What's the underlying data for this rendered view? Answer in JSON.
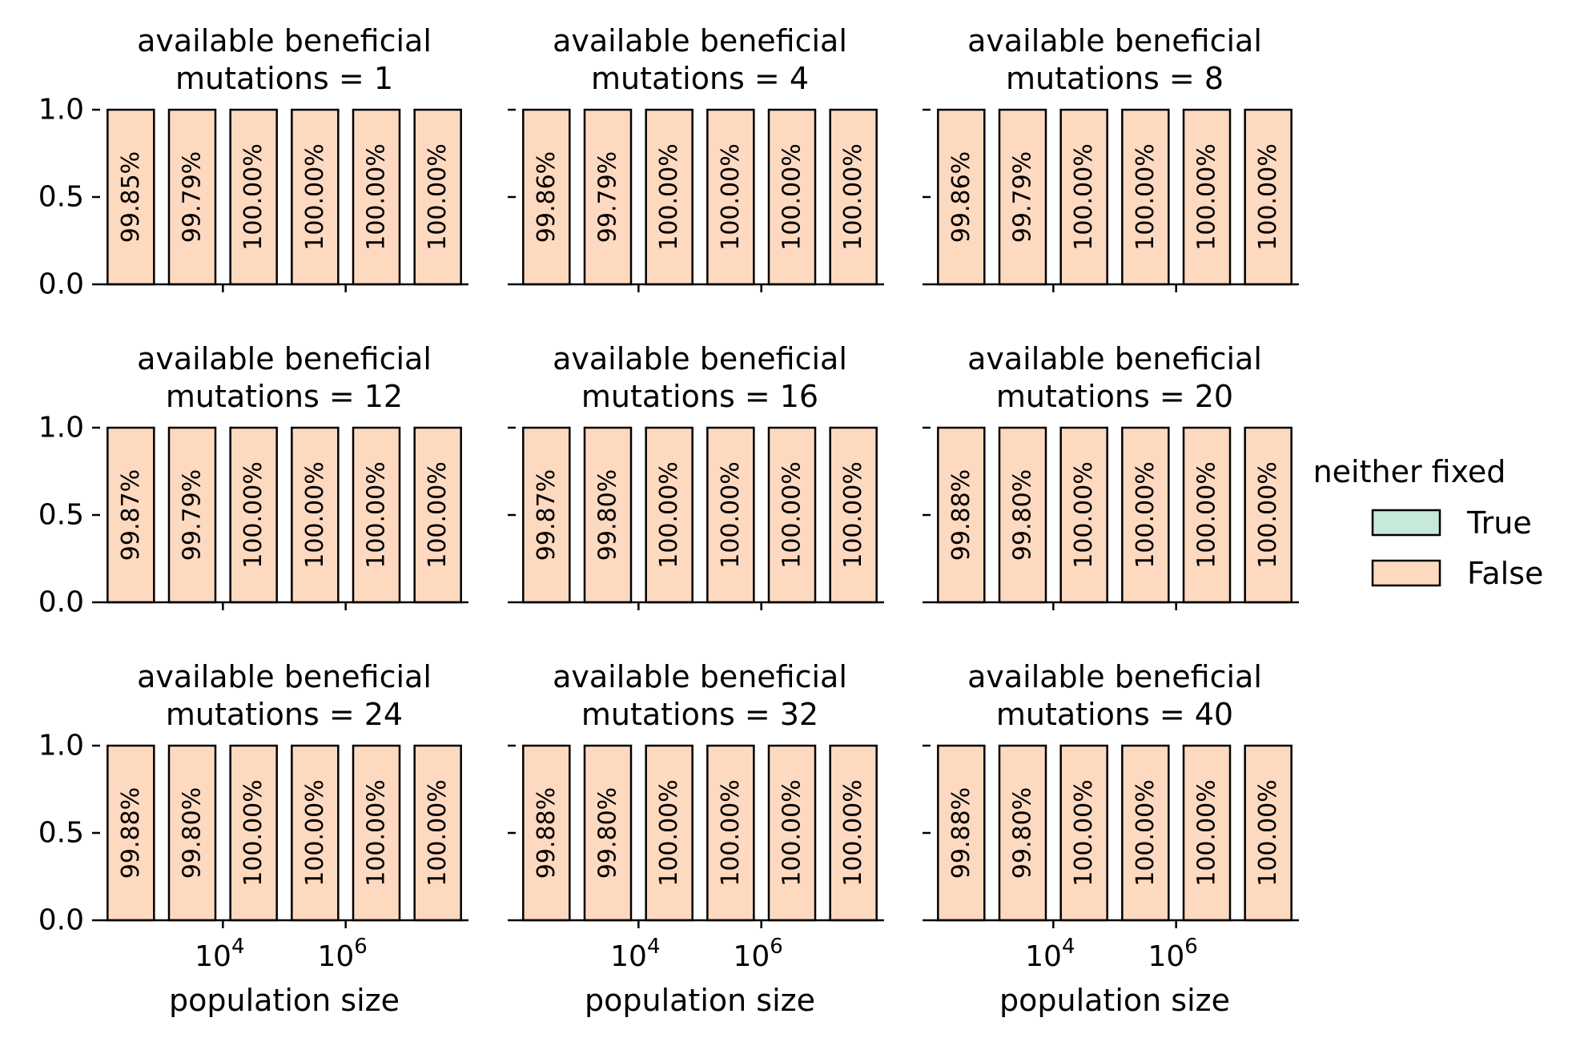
{
  "colors": {
    "true_fill": "#c6e9d9",
    "false_fill": "#fdd9c0",
    "edge": "#000000"
  },
  "legend": {
    "title": "neither fixed",
    "items": [
      {
        "label": "True",
        "color": "#c6e9d9"
      },
      {
        "label": "False",
        "color": "#fdd9c0"
      }
    ],
    "placement": "right"
  },
  "chart_data": [
    {
      "type": "bar",
      "title_line1": "available beneficial",
      "title_line2": "mutations = 1",
      "x": [
        316,
        3162,
        31623,
        316228,
        3162278,
        31622777
      ],
      "values": [
        1,
        1,
        1,
        1,
        1,
        1
      ],
      "labels": [
        "99.85%",
        "99.79%",
        "100.00%",
        "100.00%",
        "100.00%",
        "100.00%"
      ],
      "xlabel": "",
      "ylim": [
        0,
        1
      ],
      "yticks": [
        "0.0",
        "0.5",
        "1.0"
      ]
    },
    {
      "type": "bar",
      "title_line1": "available beneficial",
      "title_line2": "mutations = 4",
      "x": [
        316,
        3162,
        31623,
        316228,
        3162278,
        31622777
      ],
      "values": [
        1,
        1,
        1,
        1,
        1,
        1
      ],
      "labels": [
        "99.86%",
        "99.79%",
        "100.00%",
        "100.00%",
        "100.00%",
        "100.00%"
      ],
      "xlabel": "",
      "ylim": [
        0,
        1
      ]
    },
    {
      "type": "bar",
      "title_line1": "available beneficial",
      "title_line2": "mutations = 8",
      "x": [
        316,
        3162,
        31623,
        316228,
        3162278,
        31622777
      ],
      "values": [
        1,
        1,
        1,
        1,
        1,
        1
      ],
      "labels": [
        "99.86%",
        "99.79%",
        "100.00%",
        "100.00%",
        "100.00%",
        "100.00%"
      ],
      "xlabel": "",
      "ylim": [
        0,
        1
      ]
    },
    {
      "type": "bar",
      "title_line1": "available beneficial",
      "title_line2": "mutations = 12",
      "x": [
        316,
        3162,
        31623,
        316228,
        3162278,
        31622777
      ],
      "values": [
        1,
        1,
        1,
        1,
        1,
        1
      ],
      "labels": [
        "99.87%",
        "99.79%",
        "100.00%",
        "100.00%",
        "100.00%",
        "100.00%"
      ],
      "xlabel": "",
      "ylim": [
        0,
        1
      ],
      "yticks": [
        "0.0",
        "0.5",
        "1.0"
      ]
    },
    {
      "type": "bar",
      "title_line1": "available beneficial",
      "title_line2": "mutations = 16",
      "x": [
        316,
        3162,
        31623,
        316228,
        3162278,
        31622777
      ],
      "values": [
        1,
        1,
        1,
        1,
        1,
        1
      ],
      "labels": [
        "99.87%",
        "99.80%",
        "100.00%",
        "100.00%",
        "100.00%",
        "100.00%"
      ],
      "xlabel": "",
      "ylim": [
        0,
        1
      ]
    },
    {
      "type": "bar",
      "title_line1": "available beneficial",
      "title_line2": "mutations = 20",
      "x": [
        316,
        3162,
        31623,
        316228,
        3162278,
        31622777
      ],
      "values": [
        1,
        1,
        1,
        1,
        1,
        1
      ],
      "labels": [
        "99.88%",
        "99.80%",
        "100.00%",
        "100.00%",
        "100.00%",
        "100.00%"
      ],
      "xlabel": "",
      "ylim": [
        0,
        1
      ]
    },
    {
      "type": "bar",
      "title_line1": "available beneficial",
      "title_line2": "mutations = 24",
      "x": [
        316,
        3162,
        31623,
        316228,
        3162278,
        31622777
      ],
      "values": [
        1,
        1,
        1,
        1,
        1,
        1
      ],
      "labels": [
        "99.88%",
        "99.80%",
        "100.00%",
        "100.00%",
        "100.00%",
        "100.00%"
      ],
      "xlabel": "population size",
      "ylim": [
        0,
        1
      ],
      "yticks": [
        "0.0",
        "0.5",
        "1.0"
      ],
      "xticks": [
        {
          "base": "10",
          "exp": "4",
          "value": 10000
        },
        {
          "base": "10",
          "exp": "6",
          "value": 1000000
        }
      ]
    },
    {
      "type": "bar",
      "title_line1": "available beneficial",
      "title_line2": "mutations = 32",
      "x": [
        316,
        3162,
        31623,
        316228,
        3162278,
        31622777
      ],
      "values": [
        1,
        1,
        1,
        1,
        1,
        1
      ],
      "labels": [
        "99.88%",
        "99.80%",
        "100.00%",
        "100.00%",
        "100.00%",
        "100.00%"
      ],
      "xlabel": "population size",
      "ylim": [
        0,
        1
      ],
      "xticks": [
        {
          "base": "10",
          "exp": "4",
          "value": 10000
        },
        {
          "base": "10",
          "exp": "6",
          "value": 1000000
        }
      ]
    },
    {
      "type": "bar",
      "title_line1": "available beneficial",
      "title_line2": "mutations = 40",
      "x": [
        316,
        3162,
        31623,
        316228,
        3162278,
        31622777
      ],
      "values": [
        1,
        1,
        1,
        1,
        1,
        1
      ],
      "labels": [
        "99.88%",
        "99.80%",
        "100.00%",
        "100.00%",
        "100.00%",
        "100.00%"
      ],
      "xlabel": "population size",
      "ylim": [
        0,
        1
      ],
      "xticks": [
        {
          "base": "10",
          "exp": "4",
          "value": 10000
        },
        {
          "base": "10",
          "exp": "6",
          "value": 1000000
        }
      ]
    }
  ]
}
